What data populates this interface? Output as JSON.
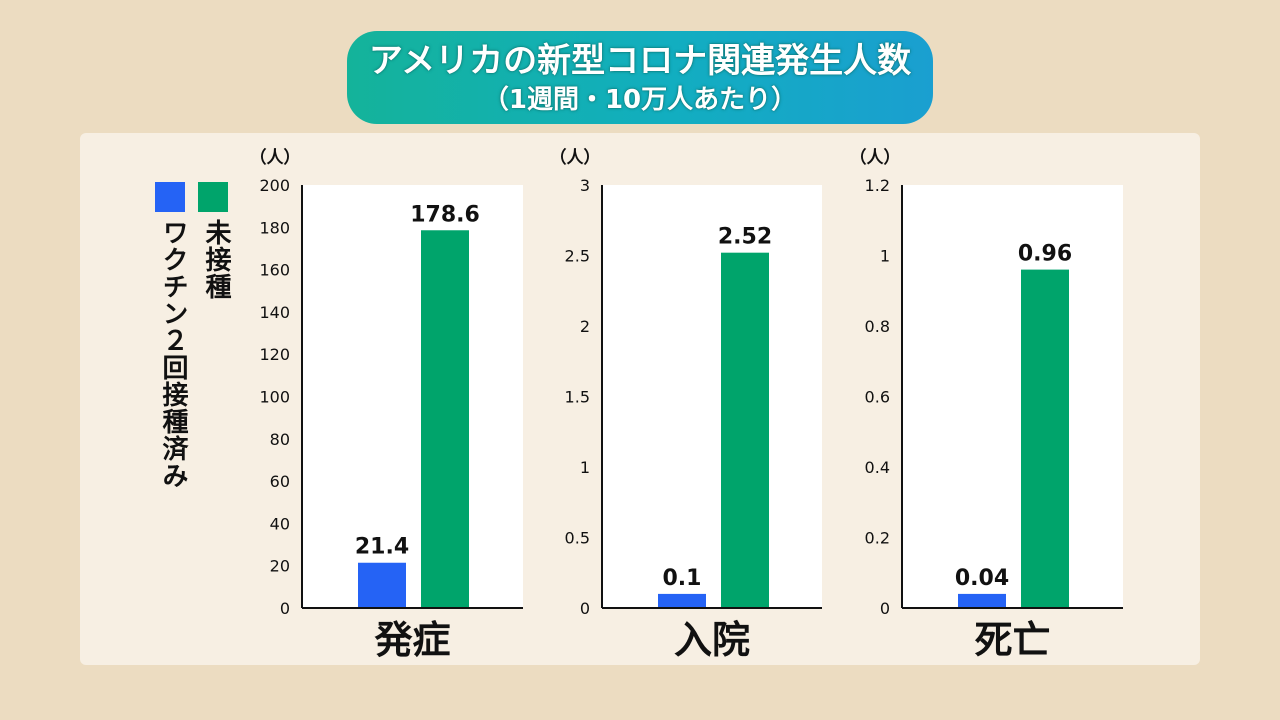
{
  "header": {
    "title": "アメリカの新型コロナ関連発生人数",
    "subtitle": "（1週間・10万人あたり）"
  },
  "legend": {
    "vaccinated": {
      "label": "ワクチン２回接種済み",
      "color": "#2563f5"
    },
    "unvaccinated": {
      "label": "未接種",
      "color": "#00a46b"
    }
  },
  "chart_data": [
    {
      "type": "bar",
      "xlabel": "発症",
      "unit": "（人）",
      "ylim": [
        0,
        200
      ],
      "ticks": [
        "0",
        "20",
        "40",
        "60",
        "80",
        "100",
        "120",
        "140",
        "160",
        "180",
        "200"
      ],
      "series": [
        {
          "name": "ワクチン２回接種済み",
          "value": 21.4,
          "label": "21.4"
        },
        {
          "name": "未接種",
          "value": 178.6,
          "label": "178.6"
        }
      ]
    },
    {
      "type": "bar",
      "xlabel": "入院",
      "unit": "（人）",
      "ylim": [
        0,
        3
      ],
      "ticks": [
        "0",
        "0.5",
        "1",
        "1.5",
        "2",
        "2.5",
        "3"
      ],
      "series": [
        {
          "name": "ワクチン２回接種済み",
          "value": 0.1,
          "label": "0.1"
        },
        {
          "name": "未接種",
          "value": 2.52,
          "label": "2.52"
        }
      ]
    },
    {
      "type": "bar",
      "xlabel": "死亡",
      "unit": "（人）",
      "ylim": [
        0,
        1.2
      ],
      "ticks": [
        "0",
        "0.2",
        "0.4",
        "0.6",
        "0.8",
        "1",
        "1.2"
      ],
      "series": [
        {
          "name": "ワクチン２回接種済み",
          "value": 0.04,
          "label": "0.04"
        },
        {
          "name": "未接種",
          "value": 0.96,
          "label": "0.96"
        }
      ]
    }
  ]
}
